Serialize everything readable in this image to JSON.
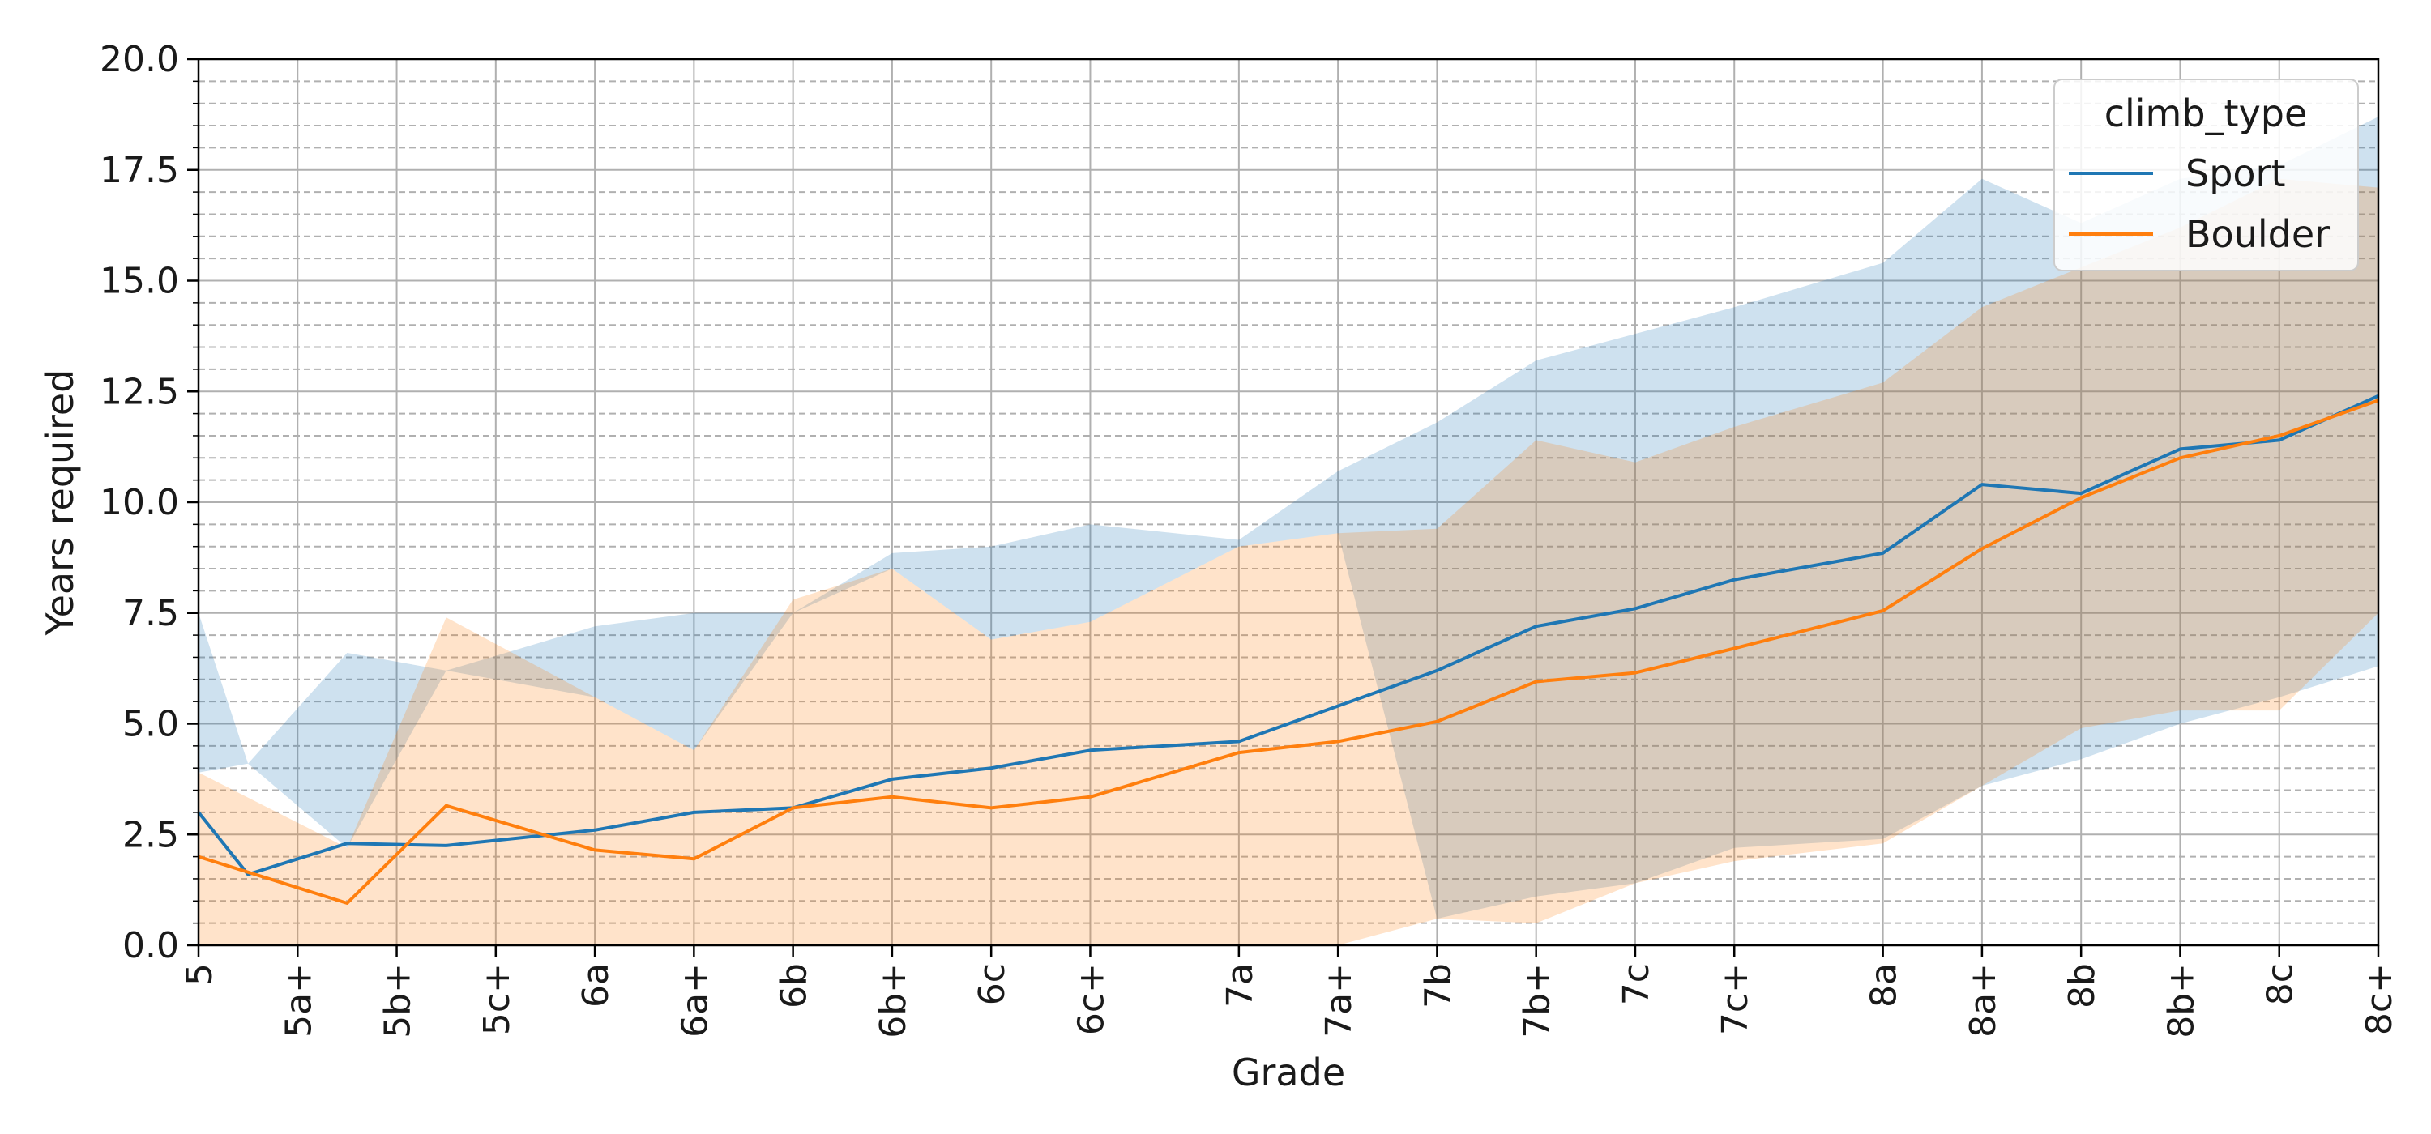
{
  "chart_data": {
    "type": "line",
    "xlabel": "Grade",
    "ylabel": "Years required",
    "ylim": [
      0,
      20
    ],
    "yticks": [
      "0.0",
      "2.5",
      "5.0",
      "7.5",
      "10.0",
      "12.5",
      "15.0",
      "17.5",
      "20.0"
    ],
    "grid": "major solid, minor dashed",
    "legend": {
      "title": "climb_type",
      "placement": "top-right"
    },
    "x": [
      0,
      1,
      2,
      3,
      4,
      5,
      6,
      7,
      8,
      9,
      10,
      11,
      12,
      13,
      14,
      15,
      16,
      17,
      18,
      19,
      20,
      21,
      22,
      23,
      24,
      25,
      26,
      27,
      28,
      29,
      30,
      31,
      32,
      33,
      34,
      35,
      36,
      37,
      38,
      39,
      40,
      41,
      42,
      43,
      44
    ],
    "xlim": [
      0,
      44
    ],
    "xticks": [
      {
        "x": 0,
        "label": "5"
      },
      {
        "x": 2,
        "label": "5a+"
      },
      {
        "x": 4,
        "label": "5b+"
      },
      {
        "x": 6,
        "label": "5c+"
      },
      {
        "x": 8,
        "label": "6a"
      },
      {
        "x": 10,
        "label": "6a+"
      },
      {
        "x": 12,
        "label": "6b"
      },
      {
        "x": 14,
        "label": "6b+"
      },
      {
        "x": 16,
        "label": "6c"
      },
      {
        "x": 18,
        "label": "6c+"
      },
      {
        "x": 21,
        "label": "7a"
      },
      {
        "x": 23,
        "label": "7a+"
      },
      {
        "x": 25,
        "label": "7b"
      },
      {
        "x": 27,
        "label": "7b+"
      },
      {
        "x": 29,
        "label": "7c"
      },
      {
        "x": 31,
        "label": "7c+"
      },
      {
        "x": 34,
        "label": "8a"
      },
      {
        "x": 36,
        "label": "8a+"
      },
      {
        "x": 38,
        "label": "8b"
      },
      {
        "x": 40,
        "label": "8b+"
      },
      {
        "x": 42,
        "label": "8c"
      },
      {
        "x": 44,
        "label": "8c+"
      }
    ],
    "series": [
      {
        "name": "Sport",
        "color": "#1f77b4",
        "points": [
          {
            "x": 0,
            "y": 3.0,
            "lo": 3.9,
            "hi": 7.5
          },
          {
            "x": 1,
            "y": 1.6,
            "lo": 4.1,
            "hi": 4.1
          },
          {
            "x": 3,
            "y": 2.3,
            "lo": 2.2,
            "hi": 6.6
          },
          {
            "x": 5,
            "y": 2.25,
            "lo": 6.2,
            "hi": 6.2
          },
          {
            "x": 8,
            "y": 2.6,
            "lo": 5.6,
            "hi": 7.2
          },
          {
            "x": 10,
            "y": 3.0,
            "lo": 4.4,
            "hi": 7.5
          },
          {
            "x": 12,
            "y": 3.1,
            "lo": 7.5,
            "hi": 7.5
          },
          {
            "x": 14,
            "y": 3.75,
            "lo": 8.5,
            "hi": 8.85
          },
          {
            "x": 16,
            "y": 4.0,
            "lo": 6.9,
            "hi": 9.0
          },
          {
            "x": 18,
            "y": 4.4,
            "lo": 7.3,
            "hi": 9.5
          },
          {
            "x": 21,
            "y": 4.6,
            "lo": 9.0,
            "hi": 9.15
          },
          {
            "x": 23,
            "y": 5.4,
            "lo": 9.3,
            "hi": 10.7
          },
          {
            "x": 25,
            "y": 6.2,
            "lo": 0.6,
            "hi": 11.8
          },
          {
            "x": 27,
            "y": 7.2,
            "lo": 1.1,
            "hi": 13.2
          },
          {
            "x": 29,
            "y": 7.6,
            "lo": 1.4,
            "hi": 13.8
          },
          {
            "x": 31,
            "y": 8.25,
            "lo": 2.2,
            "hi": 14.4
          },
          {
            "x": 34,
            "y": 8.85,
            "lo": 2.4,
            "hi": 15.4
          },
          {
            "x": 36,
            "y": 10.4,
            "lo": 3.6,
            "hi": 17.3
          },
          {
            "x": 38,
            "y": 10.2,
            "lo": 4.2,
            "hi": 16.3
          },
          {
            "x": 40,
            "y": 11.2,
            "lo": 5.0,
            "hi": 17.3
          },
          {
            "x": 42,
            "y": 11.4,
            "lo": 5.6,
            "hi": 17.6
          },
          {
            "x": 44,
            "y": 12.4,
            "lo": 6.3,
            "hi": 18.7
          }
        ]
      },
      {
        "name": "Boulder",
        "color": "#ff7f0e",
        "points": [
          {
            "x": 0,
            "y": 2.0,
            "lo": 0.0,
            "hi": 3.9
          },
          {
            "x": 3,
            "y": 0.95,
            "lo": 0.0,
            "hi": 2.2
          },
          {
            "x": 5,
            "y": 3.15,
            "lo": 0.0,
            "hi": 7.4
          },
          {
            "x": 8,
            "y": 2.15,
            "lo": 0.0,
            "hi": 5.6
          },
          {
            "x": 10,
            "y": 1.95,
            "lo": 0.0,
            "hi": 4.4
          },
          {
            "x": 12,
            "y": 3.1,
            "lo": 0.0,
            "hi": 7.8
          },
          {
            "x": 14,
            "y": 3.35,
            "lo": 0.0,
            "hi": 8.5
          },
          {
            "x": 16,
            "y": 3.1,
            "lo": 0.0,
            "hi": 6.9
          },
          {
            "x": 18,
            "y": 3.35,
            "lo": 0.0,
            "hi": 7.3
          },
          {
            "x": 21,
            "y": 4.35,
            "lo": 0.0,
            "hi": 9.0
          },
          {
            "x": 23,
            "y": 4.6,
            "lo": 0.0,
            "hi": 9.3
          },
          {
            "x": 25,
            "y": 5.05,
            "lo": 0.6,
            "hi": 9.4
          },
          {
            "x": 27,
            "y": 5.95,
            "lo": 0.5,
            "hi": 11.4
          },
          {
            "x": 29,
            "y": 6.15,
            "lo": 1.4,
            "hi": 10.9
          },
          {
            "x": 31,
            "y": 6.7,
            "lo": 1.9,
            "hi": 11.7
          },
          {
            "x": 34,
            "y": 7.55,
            "lo": 2.3,
            "hi": 12.7
          },
          {
            "x": 36,
            "y": 8.95,
            "lo": 3.6,
            "hi": 14.4
          },
          {
            "x": 38,
            "y": 10.1,
            "lo": 4.9,
            "hi": 15.3
          },
          {
            "x": 40,
            "y": 11.0,
            "lo": 5.3,
            "hi": 16.2
          },
          {
            "x": 42,
            "y": 11.5,
            "lo": 5.3,
            "hi": 17.3
          },
          {
            "x": 44,
            "y": 12.3,
            "lo": 7.5,
            "hi": 17.1
          }
        ]
      }
    ]
  }
}
